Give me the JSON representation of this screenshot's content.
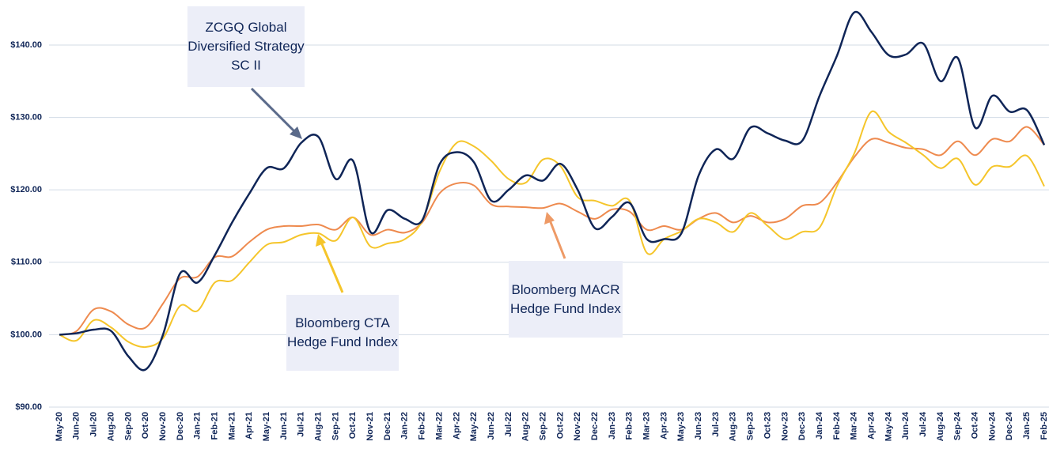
{
  "chart_data": {
    "type": "line",
    "categories": [
      "May-20",
      "Jun-20",
      "Jul-20",
      "Aug-20",
      "Sep-20",
      "Oct-20",
      "Nov-20",
      "Dec-20",
      "Jan-21",
      "Feb-21",
      "Mar-21",
      "Apr-21",
      "May-21",
      "Jun-21",
      "Jul-21",
      "Aug-21",
      "Sep-21",
      "Oct-21",
      "Nov-21",
      "Dec-21",
      "Jan-22",
      "Feb-22",
      "Mar-22",
      "Apr-22",
      "May-22",
      "Jun-22",
      "Jul-22",
      "Aug-22",
      "Sep-22",
      "Oct-22",
      "Nov-22",
      "Dec-22",
      "Jan-23",
      "Feb-23",
      "Mar-23",
      "Apr-23",
      "May-23",
      "Jun-23",
      "Jul-23",
      "Aug-23",
      "Sep-23",
      "Oct-23",
      "Nov-23",
      "Dec-23",
      "Jan-24",
      "Feb-24",
      "Mar-24",
      "Apr-24",
      "May-24",
      "Jun-24",
      "Jul-24",
      "Aug-24",
      "Sep-24",
      "Oct-24",
      "Nov-24",
      "Dec-24",
      "Jan-25",
      "Feb-25"
    ],
    "series": [
      {
        "name": "ZCGQ Global Diversified Strategy SC II",
        "color": "#0f2557",
        "values": [
          100,
          100.2,
          100.7,
          100.5,
          97,
          95.2,
          100,
          108.5,
          107.2,
          111,
          115.5,
          119.5,
          123,
          123,
          126.5,
          127.3,
          121.5,
          124,
          114.2,
          117.2,
          116,
          115.8,
          123.5,
          125.2,
          123.8,
          118.5,
          120,
          122,
          121.3,
          123.6,
          120,
          114.7,
          116.3,
          118.2,
          113.2,
          113.2,
          114,
          122,
          125.6,
          124.3,
          128.6,
          127.8,
          126.8,
          126.8,
          133,
          138.5,
          144.5,
          141.8,
          138.6,
          138.7,
          140.2,
          135,
          138.2,
          128.6,
          133,
          130.8,
          131,
          126.2
        ]
      },
      {
        "name": "Bloomberg CTA Hedge Fund Index",
        "color": "#f5c52a",
        "values": [
          100,
          99.2,
          102,
          101,
          99,
          98.3,
          99.5,
          104,
          103.3,
          107.2,
          107.5,
          110,
          112.4,
          112.8,
          113.8,
          114,
          113,
          116.2,
          112.2,
          112.6,
          113.2,
          115.7,
          122.5,
          126.5,
          126,
          124,
          121.5,
          121,
          124.2,
          123.3,
          119,
          118.5,
          117.8,
          118.5,
          111.3,
          113.2,
          114.3,
          116,
          115.5,
          114.2,
          116.8,
          115,
          113.2,
          114.2,
          114.8,
          120.5,
          125,
          130.8,
          128,
          126.5,
          124.8,
          123,
          124.3,
          120.7,
          123.2,
          123.2,
          124.7,
          120.5
        ]
      },
      {
        "name": "Bloomberg MACR Hedge Fund Index",
        "color": "#ee8a4e",
        "values": [
          100,
          100.5,
          103.5,
          103.2,
          101.4,
          101,
          104.3,
          107.8,
          108,
          110.7,
          110.8,
          112.8,
          114.5,
          115,
          115,
          115.2,
          114.5,
          116.2,
          113.8,
          114.5,
          114.1,
          115.5,
          119.5,
          120.9,
          120.6,
          118,
          117.7,
          117.6,
          117.5,
          118.1,
          117,
          116,
          117.3,
          117,
          114.5,
          115,
          114.5,
          116,
          116.8,
          115.5,
          116.4,
          115.5,
          116,
          117.8,
          118.2,
          121,
          124.5,
          127,
          126.5,
          125.8,
          125.6,
          124.8,
          126.7,
          124.8,
          127,
          126.7,
          128.7,
          126.2
        ]
      }
    ],
    "ylim": [
      90,
      146
    ],
    "yticks": [
      {
        "value": 90,
        "label": "$90.00"
      },
      {
        "value": 100,
        "label": "$100.00"
      },
      {
        "value": 110,
        "label": "$110.00"
      },
      {
        "value": 120,
        "label": "$120.00"
      },
      {
        "value": 130,
        "label": "$130.00"
      },
      {
        "value": 140,
        "label": "$140.00"
      }
    ],
    "grid": true
  }
}
